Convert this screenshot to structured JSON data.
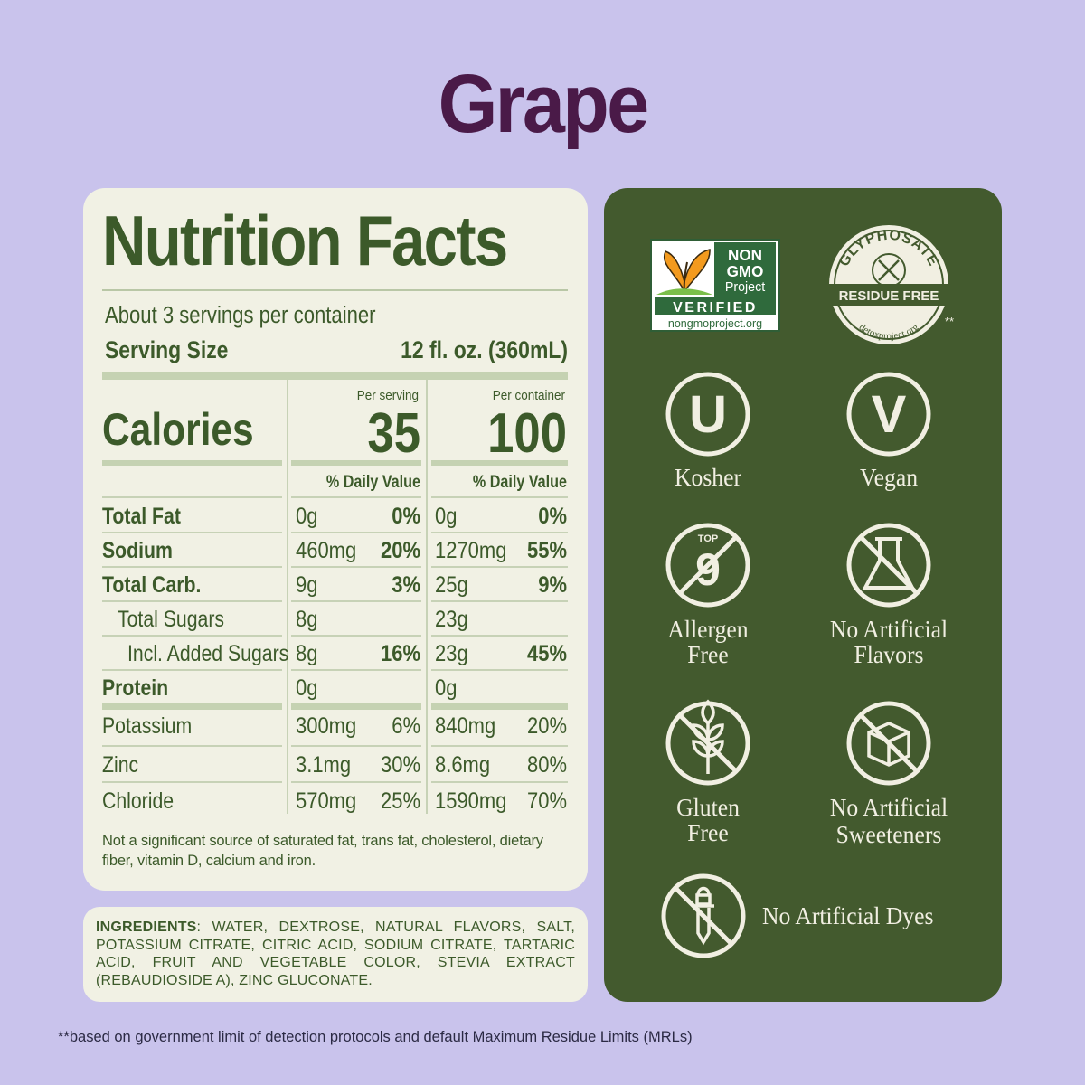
{
  "title": "Grape",
  "nutrition": {
    "heading": "Nutrition Facts",
    "servings": "About 3 servings per container",
    "serving_size_label": "Serving Size",
    "serving_size": "12 fl. oz. (360mL)",
    "calories_label": "Calories",
    "columns": [
      {
        "label": "Per serving",
        "calories": "35",
        "daily_value": "% Daily Value"
      },
      {
        "label": "Per container",
        "calories": "100",
        "daily_value": "% Daily Value"
      }
    ],
    "rows": [
      {
        "name": "Total Fat",
        "amounts": [
          "0g",
          "0g"
        ],
        "daily_values": [
          "0%",
          "0%"
        ]
      },
      {
        "name": "Sodium",
        "amounts": [
          "460mg",
          "1270mg"
        ],
        "daily_values": [
          "20%",
          "55%"
        ]
      },
      {
        "name": "Total Carb.",
        "amounts": [
          "9g",
          "25g"
        ],
        "daily_values": [
          "3%",
          "9%"
        ]
      },
      {
        "name": "Total Sugars",
        "amounts": [
          "8g",
          "23g"
        ]
      },
      {
        "name": "Incl. Added Sugars",
        "amounts": [
          "8g",
          "23g"
        ],
        "daily_values": [
          "16%",
          "45%"
        ]
      },
      {
        "name": "Protein",
        "amounts": [
          "0g",
          "0g"
        ]
      },
      {
        "name": "Potassium",
        "amounts": [
          "300mg",
          "840mg"
        ],
        "daily_values": [
          "6%",
          "20%"
        ]
      },
      {
        "name": "Zinc",
        "amounts": [
          "3.1mg",
          "8.6mg"
        ],
        "daily_values": [
          "30%",
          "80%"
        ]
      },
      {
        "name": "Chloride",
        "amounts": [
          "570mg",
          "1590mg"
        ],
        "daily_values": [
          "25%",
          "70%"
        ]
      }
    ],
    "footnote": "Not a significant source of saturated fat, trans fat, cholesterol, dietary fiber, vitamin D, calcium and iron."
  },
  "ingredients": {
    "label": "INGREDIENTS",
    "text": ": WATER, DEXTROSE, NATURAL FLAVORS, SALT, POTASSIUM CITRATE, CITRIC ACID, SODIUM CITRATE, TARTARIC ACID, FRUIT AND VEGETABLE COLOR, STEVIA EXTRACT (REBAUDIOSIDE A), ZINC GLUCONATE."
  },
  "certifications": {
    "non_gmo": {
      "lines": [
        "NON",
        "GMO",
        "Project"
      ],
      "verified": "VERIFIED",
      "url": "nongmoproject.org"
    },
    "glyphosate": {
      "arc": "GLYPHOSATE",
      "banner": "RESIDUE FREE",
      "url": "detoxproject.org",
      "mark": "**"
    }
  },
  "claims": [
    {
      "symbol": "U",
      "label": [
        "Kosher"
      ]
    },
    {
      "symbol": "V",
      "label": [
        "Vegan"
      ]
    },
    {
      "badge": "TOP",
      "symbol": "9",
      "label": [
        "Allergen",
        "Free"
      ]
    },
    {
      "label": [
        "No Artificial",
        "Flavors"
      ]
    },
    {
      "label": [
        "Gluten",
        "Free"
      ]
    },
    {
      "label": [
        "No Artificial",
        "Sweeteners"
      ]
    },
    {
      "label": [
        "No Artificial Dyes"
      ]
    }
  ],
  "disclaimer": "**based on government limit of detection protocols and default Maximum Residue Limits (MRLs)"
}
